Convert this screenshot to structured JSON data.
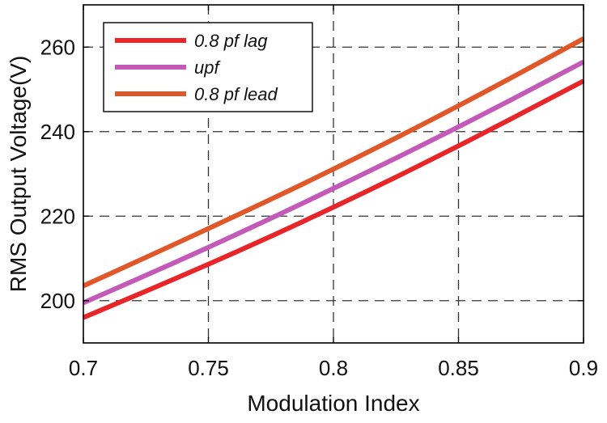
{
  "chart_data": {
    "type": "line",
    "title": "",
    "xlabel": "Modulation Index",
    "ylabel": "RMS Output Voltage(V)",
    "xlim": [
      0.7,
      0.9
    ],
    "ylim": [
      190,
      270
    ],
    "xticks": [
      0.7,
      0.75,
      0.8,
      0.85,
      0.9
    ],
    "xtick_labels": [
      "0.7",
      "0.75",
      "0.8",
      "0.85",
      "0.9"
    ],
    "yticks": [
      200,
      220,
      240,
      260
    ],
    "ytick_labels": [
      "200",
      "220",
      "240",
      "260"
    ],
    "grid": true,
    "legend_position": "top-left",
    "x": [
      0.7,
      0.75,
      0.8,
      0.85,
      0.9
    ],
    "series": [
      {
        "name": "0.8 pf lag",
        "color": "#e8262a",
        "values": [
          196.0,
          208.5,
          222.0,
          236.5,
          252.0
        ]
      },
      {
        "name": "upf",
        "color": "#c45ab8",
        "values": [
          199.5,
          212.5,
          226.5,
          241.0,
          256.5
        ]
      },
      {
        "name": "0.8 pf lead",
        "color": "#e0582a",
        "values": [
          203.5,
          217.0,
          231.0,
          246.0,
          262.0
        ]
      }
    ]
  }
}
